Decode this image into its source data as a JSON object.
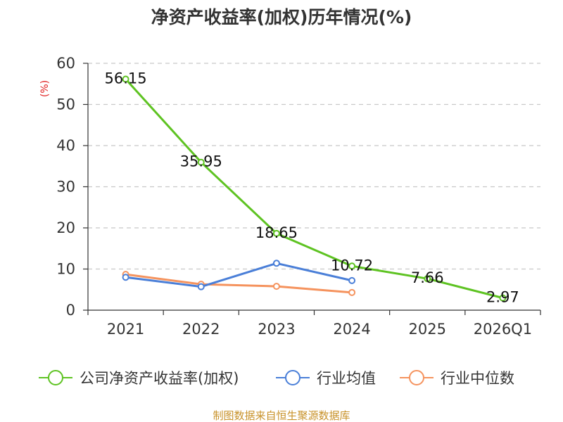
{
  "chart_data": {
    "type": "line",
    "title": "净资产收益率(加权)历年情况(%)",
    "ylabel": "(%)",
    "xlabel": "",
    "ylim": [
      0,
      60
    ],
    "yticks": [
      "0",
      "10",
      "20",
      "30",
      "40",
      "50",
      "60"
    ],
    "categories": [
      "2021",
      "2022",
      "2023",
      "2024",
      "2025",
      "2026Q1"
    ],
    "series": [
      {
        "name": "公司净资产收益率(加权)",
        "color": "#5ec322",
        "values": [
          56.15,
          35.95,
          18.65,
          10.72,
          7.66,
          2.97
        ],
        "labels": [
          "56.15",
          "35.95",
          "18.65",
          "10.72",
          "7.66",
          "2.97"
        ]
      },
      {
        "name": "行业均值",
        "color": "#4a7fd8",
        "values": [
          8.0,
          5.7,
          11.4,
          7.2,
          null,
          null
        ]
      },
      {
        "name": "行业中位数",
        "color": "#f5935e",
        "values": [
          8.7,
          6.3,
          5.8,
          4.3,
          null,
          null
        ]
      }
    ],
    "grid": true,
    "legend_position": "bottom"
  },
  "source": "制图数据来自恒生聚源数据库"
}
